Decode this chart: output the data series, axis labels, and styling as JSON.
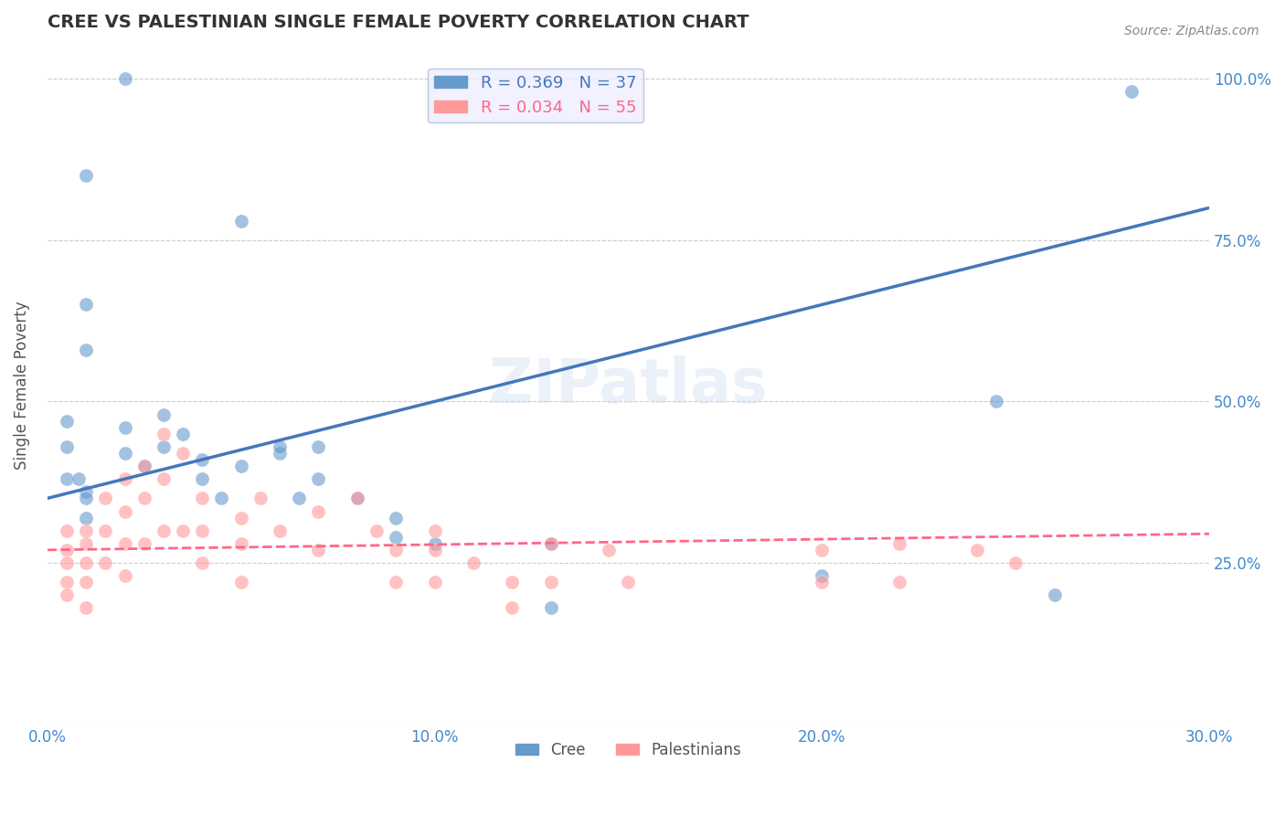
{
  "title": "CREE VS PALESTINIAN SINGLE FEMALE POVERTY CORRELATION CHART",
  "source_text": "Source: ZipAtlas.com",
  "xlabel": "",
  "ylabel": "Single Female Poverty",
  "watermark": "ZIPatlas",
  "x_min": 0.0,
  "x_max": 0.3,
  "y_min": 0.0,
  "y_max": 1.05,
  "yticks": [
    0.0,
    0.25,
    0.5,
    0.75,
    1.0
  ],
  "ytick_labels": [
    "",
    "25.0%",
    "50.0%",
    "75.0%",
    "100.0%"
  ],
  "xticks": [
    0.0,
    0.1,
    0.2,
    0.3
  ],
  "xtick_labels": [
    "0.0%",
    "10.0%",
    "20.0%",
    "30.0%"
  ],
  "cree_R": 0.369,
  "cree_N": 37,
  "pal_R": 0.034,
  "pal_N": 55,
  "cree_color": "#6699CC",
  "pal_color": "#FF9999",
  "cree_line_color": "#4477BB",
  "pal_line_color": "#FF6688",
  "legend_box_color": "#EEEEFF",
  "cree_scatter_x": [
    0.02,
    0.01,
    0.01,
    0.01,
    0.005,
    0.005,
    0.005,
    0.008,
    0.01,
    0.01,
    0.01,
    0.02,
    0.02,
    0.025,
    0.03,
    0.03,
    0.035,
    0.04,
    0.04,
    0.045,
    0.05,
    0.05,
    0.06,
    0.06,
    0.065,
    0.07,
    0.07,
    0.08,
    0.09,
    0.09,
    0.1,
    0.13,
    0.13,
    0.2,
    0.245,
    0.26,
    0.28
  ],
  "cree_scatter_y": [
    1.0,
    0.85,
    0.65,
    0.58,
    0.47,
    0.43,
    0.38,
    0.38,
    0.36,
    0.35,
    0.32,
    0.46,
    0.42,
    0.4,
    0.48,
    0.43,
    0.45,
    0.41,
    0.38,
    0.35,
    0.78,
    0.4,
    0.42,
    0.43,
    0.35,
    0.43,
    0.38,
    0.35,
    0.32,
    0.29,
    0.28,
    0.28,
    0.18,
    0.23,
    0.5,
    0.2,
    0.98
  ],
  "pal_scatter_x": [
    0.005,
    0.005,
    0.005,
    0.005,
    0.005,
    0.01,
    0.01,
    0.01,
    0.01,
    0.01,
    0.015,
    0.015,
    0.015,
    0.02,
    0.02,
    0.02,
    0.02,
    0.025,
    0.025,
    0.025,
    0.03,
    0.03,
    0.03,
    0.035,
    0.035,
    0.04,
    0.04,
    0.04,
    0.05,
    0.05,
    0.05,
    0.055,
    0.06,
    0.07,
    0.07,
    0.08,
    0.085,
    0.09,
    0.09,
    0.1,
    0.1,
    0.1,
    0.11,
    0.12,
    0.12,
    0.13,
    0.13,
    0.145,
    0.15,
    0.2,
    0.2,
    0.22,
    0.22,
    0.24,
    0.25
  ],
  "pal_scatter_y": [
    0.3,
    0.27,
    0.25,
    0.22,
    0.2,
    0.3,
    0.28,
    0.25,
    0.22,
    0.18,
    0.35,
    0.3,
    0.25,
    0.38,
    0.33,
    0.28,
    0.23,
    0.4,
    0.35,
    0.28,
    0.45,
    0.38,
    0.3,
    0.42,
    0.3,
    0.35,
    0.3,
    0.25,
    0.32,
    0.28,
    0.22,
    0.35,
    0.3,
    0.33,
    0.27,
    0.35,
    0.3,
    0.27,
    0.22,
    0.3,
    0.27,
    0.22,
    0.25,
    0.22,
    0.18,
    0.28,
    0.22,
    0.27,
    0.22,
    0.27,
    0.22,
    0.28,
    0.22,
    0.27,
    0.25
  ],
  "cree_trend_x": [
    0.0,
    0.3
  ],
  "cree_trend_y": [
    0.35,
    0.8
  ],
  "pal_trend_x": [
    0.0,
    0.3
  ],
  "pal_trend_y": [
    0.27,
    0.295
  ],
  "background_color": "#FFFFFF",
  "grid_color": "#CCCCCC",
  "title_color": "#333333",
  "axis_label_color": "#555555",
  "tick_color": "#4488CC",
  "source_color": "#888888"
}
